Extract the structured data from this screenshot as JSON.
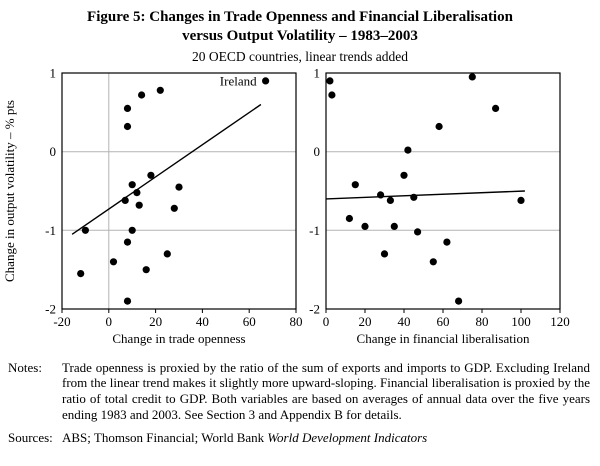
{
  "figure": {
    "title_line1": "Figure 5: Changes in Trade Openness and Financial Liberalisation",
    "title_line2": "versus Output Volatility – 1983–2003",
    "subtitle": "20 OECD countries, linear trends added"
  },
  "chart_data": [
    {
      "type": "scatter",
      "panel": "left",
      "xlabel": "Change in trade openness",
      "ylabel": "Change in output volatility – % pts",
      "xlim": [
        -20,
        80
      ],
      "ylim": [
        -2,
        1
      ],
      "xticks": [
        -20,
        0,
        20,
        40,
        60,
        80
      ],
      "yticks": [
        1,
        0,
        -1,
        -2
      ],
      "gridlines_y": [
        0,
        -1
      ],
      "vline_x": 0,
      "points": [
        [
          67,
          0.9
        ],
        [
          22,
          0.78
        ],
        [
          14,
          0.72
        ],
        [
          8,
          0.55
        ],
        [
          8,
          0.32
        ],
        [
          18,
          -0.3
        ],
        [
          10,
          -0.42
        ],
        [
          12,
          -0.52
        ],
        [
          7,
          -0.62
        ],
        [
          13,
          -0.68
        ],
        [
          30,
          -0.45
        ],
        [
          28,
          -0.72
        ],
        [
          10,
          -1.0
        ],
        [
          -10,
          -1.0
        ],
        [
          8,
          -1.15
        ],
        [
          2,
          -1.4
        ],
        [
          25,
          -1.3
        ],
        [
          -12,
          -1.55
        ],
        [
          16,
          -1.5
        ],
        [
          8,
          -1.9
        ]
      ],
      "trend": {
        "x1": -15.7,
        "y1": -1.05,
        "x2": 65,
        "y2": 0.6
      },
      "annotation": {
        "text": "Ireland",
        "x": 67,
        "y": 0.9
      }
    },
    {
      "type": "scatter",
      "panel": "right",
      "xlabel": "Change in financial liberalisation",
      "ylabel": "",
      "xlim": [
        0,
        120
      ],
      "ylim": [
        -2,
        1
      ],
      "xticks": [
        0,
        20,
        40,
        60,
        80,
        100,
        120
      ],
      "yticks": [
        1,
        0,
        -1,
        -2
      ],
      "gridlines_y": [
        0,
        -1
      ],
      "vline_x": null,
      "points": [
        [
          2,
          0.9
        ],
        [
          3,
          0.72
        ],
        [
          75,
          0.95
        ],
        [
          87,
          0.55
        ],
        [
          58,
          0.32
        ],
        [
          42,
          0.02
        ],
        [
          40,
          -0.3
        ],
        [
          15,
          -0.42
        ],
        [
          12,
          -0.85
        ],
        [
          28,
          -0.55
        ],
        [
          33,
          -0.62
        ],
        [
          45,
          -0.58
        ],
        [
          100,
          -0.62
        ],
        [
          20,
          -0.95
        ],
        [
          35,
          -0.95
        ],
        [
          47,
          -1.02
        ],
        [
          62,
          -1.15
        ],
        [
          30,
          -1.3
        ],
        [
          55,
          -1.4
        ],
        [
          68,
          -1.9
        ]
      ],
      "trend": {
        "x1": 0,
        "y1": -0.6,
        "x2": 102,
        "y2": -0.5
      }
    }
  ],
  "notes": {
    "label": "Notes:",
    "text": "Trade openness is proxied by the ratio of the sum of exports and imports to GDP. Excluding Ireland from the linear trend makes it slightly more upward-sloping. Financial liberalisation is proxied by the ratio of total credit to GDP. Both variables are based on averages of annual data over the five years ending 1983 and 2003. See Section 3 and Appendix B for details."
  },
  "sources": {
    "label": "Sources:",
    "text_plain": "ABS; Thomson Financial; World Bank ",
    "text_italic": "World Development Indicators"
  }
}
